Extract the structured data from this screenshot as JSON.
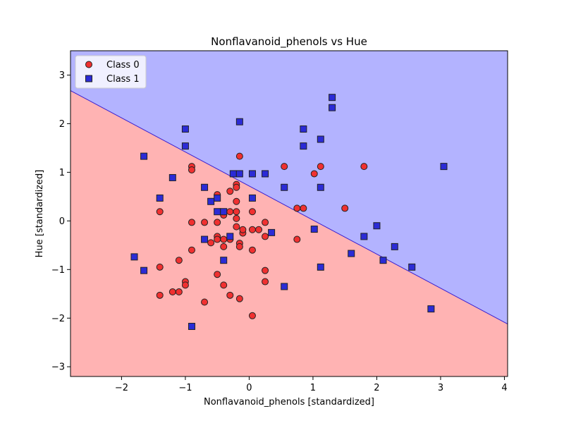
{
  "chart_data": {
    "type": "scatter",
    "title": "Nonflavanoid_phenols vs Hue",
    "xlabel": "Nonflavanoid_phenols [standardized]",
    "ylabel": "Hue [standardized]",
    "xlim": [
      -2.8,
      4.05
    ],
    "ylim": [
      -3.2,
      3.5
    ],
    "xticks": [
      -2,
      -1,
      0,
      1,
      2,
      3,
      4
    ],
    "yticks": [
      -3,
      -2,
      -1,
      0,
      1,
      2,
      3
    ],
    "xtick_labels": [
      "−2",
      "−1",
      "0",
      "1",
      "2",
      "3",
      "4"
    ],
    "ytick_labels": [
      "−3",
      "−2",
      "−1",
      "0",
      "1",
      "2",
      "3"
    ],
    "grid": false,
    "legend_position": "upper-left",
    "decision_boundary": {
      "points": [
        [
          -2.8,
          2.68
        ],
        [
          4.05,
          -2.12
        ]
      ],
      "region_above": "Class 1",
      "region_below": "Class 0"
    },
    "colors": {
      "class0_region": "#ffb3b3",
      "class1_region": "#b3b3ff",
      "class0_marker": "#f03030",
      "class1_marker": "#2b2bd6",
      "boundary": "#3a1fd0"
    },
    "series": [
      {
        "name": "Class 0",
        "marker": "circle",
        "points": [
          [
            -0.9,
            1.12
          ],
          [
            -0.9,
            1.05
          ],
          [
            -0.15,
            1.33
          ],
          [
            -0.2,
            0.75
          ],
          [
            -0.2,
            0.69
          ],
          [
            0.05,
            0.97
          ],
          [
            0.55,
            1.12
          ],
          [
            1.02,
            0.97
          ],
          [
            1.12,
            1.12
          ],
          [
            1.8,
            1.12
          ],
          [
            0.75,
            0.26
          ],
          [
            0.85,
            0.26
          ],
          [
            1.5,
            0.26
          ],
          [
            0.75,
            -0.38
          ],
          [
            -1.4,
            0.19
          ],
          [
            -0.9,
            -0.03
          ],
          [
            -0.7,
            -0.03
          ],
          [
            -0.5,
            -0.03
          ],
          [
            -0.5,
            0.54
          ],
          [
            -0.3,
            0.61
          ],
          [
            -0.2,
            0.4
          ],
          [
            -0.4,
            0.12
          ],
          [
            -0.3,
            0.19
          ],
          [
            -0.2,
            0.19
          ],
          [
            0.05,
            0.19
          ],
          [
            -0.2,
            0.05
          ],
          [
            -0.2,
            -0.12
          ],
          [
            -0.1,
            -0.25
          ],
          [
            -0.1,
            -0.18
          ],
          [
            0.05,
            -0.18
          ],
          [
            0.15,
            -0.18
          ],
          [
            0.25,
            -0.03
          ],
          [
            0.25,
            -0.32
          ],
          [
            -0.6,
            -0.45
          ],
          [
            -0.5,
            -0.32
          ],
          [
            -0.5,
            -0.38
          ],
          [
            -0.4,
            -0.38
          ],
          [
            -0.3,
            -0.38
          ],
          [
            -0.4,
            -0.53
          ],
          [
            -0.15,
            -0.46
          ],
          [
            -0.15,
            -0.53
          ],
          [
            0.05,
            -0.6
          ],
          [
            -0.9,
            -0.6
          ],
          [
            -1.1,
            -0.81
          ],
          [
            -1.4,
            -0.95
          ],
          [
            -1.0,
            -1.25
          ],
          [
            -1.0,
            -1.32
          ],
          [
            -1.1,
            -1.46
          ],
          [
            -1.2,
            -1.46
          ],
          [
            -1.4,
            -1.53
          ],
          [
            -0.5,
            -1.1
          ],
          [
            -0.4,
            -1.32
          ],
          [
            -0.3,
            -1.53
          ],
          [
            -0.15,
            -1.6
          ],
          [
            -0.7,
            -1.67
          ],
          [
            0.25,
            -1.02
          ],
          [
            0.25,
            -1.25
          ],
          [
            0.05,
            -1.95
          ]
        ]
      },
      {
        "name": "Class 1",
        "marker": "square",
        "points": [
          [
            1.3,
            2.54
          ],
          [
            1.3,
            2.33
          ],
          [
            -0.15,
            2.04
          ],
          [
            -1.0,
            1.89
          ],
          [
            0.85,
            1.89
          ],
          [
            -1.0,
            1.54
          ],
          [
            0.85,
            1.54
          ],
          [
            1.12,
            1.68
          ],
          [
            -1.65,
            1.33
          ],
          [
            -0.25,
            0.97
          ],
          [
            -0.15,
            0.97
          ],
          [
            0.05,
            0.97
          ],
          [
            0.25,
            0.97
          ],
          [
            -1.2,
            0.89
          ],
          [
            -0.7,
            0.69
          ],
          [
            0.55,
            0.69
          ],
          [
            1.12,
            0.69
          ],
          [
            3.05,
            1.12
          ],
          [
            -1.4,
            0.47
          ],
          [
            -0.6,
            0.4
          ],
          [
            -0.5,
            0.47
          ],
          [
            0.05,
            0.47
          ],
          [
            -0.5,
            0.19
          ],
          [
            -0.4,
            0.19
          ],
          [
            1.02,
            -0.17
          ],
          [
            2.0,
            -0.1
          ],
          [
            1.8,
            -0.32
          ],
          [
            0.35,
            -0.24
          ],
          [
            -0.3,
            -0.32
          ],
          [
            -0.7,
            -0.38
          ],
          [
            -0.4,
            -0.81
          ],
          [
            2.28,
            -0.53
          ],
          [
            1.6,
            -0.67
          ],
          [
            -1.8,
            -0.74
          ],
          [
            2.1,
            -0.81
          ],
          [
            2.55,
            -0.95
          ],
          [
            -1.65,
            -1.02
          ],
          [
            1.12,
            -0.95
          ],
          [
            0.55,
            -1.35
          ],
          [
            2.85,
            -1.81
          ],
          [
            -0.9,
            -2.17
          ]
        ]
      }
    ]
  }
}
